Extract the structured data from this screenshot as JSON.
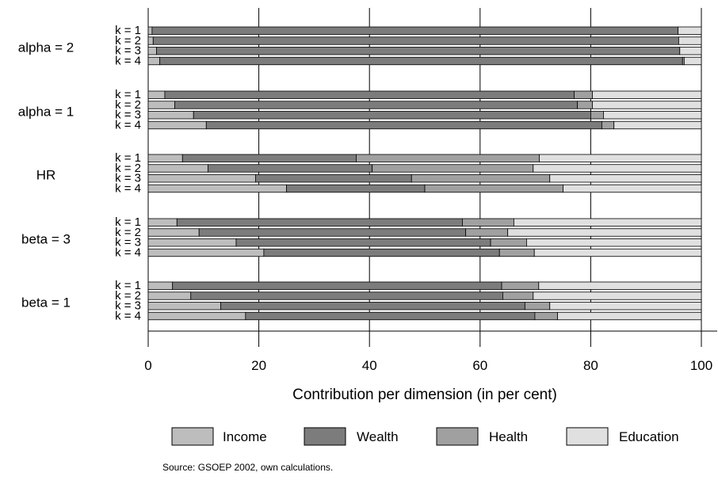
{
  "chart_data": {
    "type": "bar",
    "orientation": "horizontal",
    "stacked": true,
    "xlabel": "Contribution per dimension (in per cent)",
    "xlim": [
      0,
      100
    ],
    "xticks": [
      0,
      20,
      40,
      60,
      80,
      100
    ],
    "legend_position": "bottom",
    "colors": {
      "Income": "#bdbdbd",
      "Wealth": "#7c7c7c",
      "Health": "#a0a0a0",
      "Education": "#e0e0e0"
    },
    "series_names": [
      "Income",
      "Wealth",
      "Health",
      "Education"
    ],
    "groups": [
      {
        "label": "alpha = 2",
        "bars": [
          {
            "label": "k = 1",
            "values": [
              0.7,
              95.1,
              0.0,
              4.2
            ]
          },
          {
            "label": "k = 2",
            "values": [
              0.9,
              95.0,
              0.0,
              4.1
            ]
          },
          {
            "label": "k = 3",
            "values": [
              1.5,
              94.6,
              0.0,
              3.9
            ]
          },
          {
            "label": "k = 4",
            "values": [
              2.1,
              94.5,
              0.3,
              3.1
            ]
          }
        ]
      },
      {
        "label": "alpha = 1",
        "bars": [
          {
            "label": "k = 1",
            "values": [
              3.0,
              74.0,
              3.3,
              19.7
            ]
          },
          {
            "label": "k = 2",
            "values": [
              4.8,
              72.8,
              2.7,
              19.7
            ]
          },
          {
            "label": "k = 3",
            "values": [
              8.2,
              71.8,
              2.3,
              17.7
            ]
          },
          {
            "label": "k = 4",
            "values": [
              10.5,
              71.5,
              2.2,
              15.8
            ]
          }
        ]
      },
      {
        "label": "HR",
        "bars": [
          {
            "label": "k = 1",
            "values": [
              6.2,
              31.4,
              33.1,
              29.3
            ]
          },
          {
            "label": "k = 2",
            "values": [
              10.8,
              29.7,
              29.1,
              30.4
            ]
          },
          {
            "label": "k = 3",
            "values": [
              19.4,
              28.2,
              25.0,
              27.4
            ]
          },
          {
            "label": "k = 4",
            "values": [
              25.0,
              25.0,
              25.0,
              25.0
            ]
          }
        ]
      },
      {
        "label": "beta = 3",
        "bars": [
          {
            "label": "k = 1",
            "values": [
              5.2,
              51.6,
              9.3,
              33.9
            ]
          },
          {
            "label": "k = 2",
            "values": [
              9.2,
              48.2,
              7.6,
              35.0
            ]
          },
          {
            "label": "k = 3",
            "values": [
              15.9,
              46.0,
              6.5,
              31.6
            ]
          },
          {
            "label": "k = 4",
            "values": [
              20.9,
              42.6,
              6.3,
              30.2
            ]
          }
        ]
      },
      {
        "label": "beta = 1",
        "bars": [
          {
            "label": "k = 1",
            "values": [
              4.4,
              59.5,
              6.7,
              29.4
            ]
          },
          {
            "label": "k = 2",
            "values": [
              7.7,
              56.4,
              5.5,
              30.4
            ]
          },
          {
            "label": "k = 3",
            "values": [
              13.1,
              55.0,
              4.5,
              27.4
            ]
          },
          {
            "label": "k = 4",
            "values": [
              17.6,
              52.3,
              4.1,
              26.0
            ]
          }
        ]
      }
    ]
  },
  "source_note": "Source: GSOEP 2002, own calculations."
}
